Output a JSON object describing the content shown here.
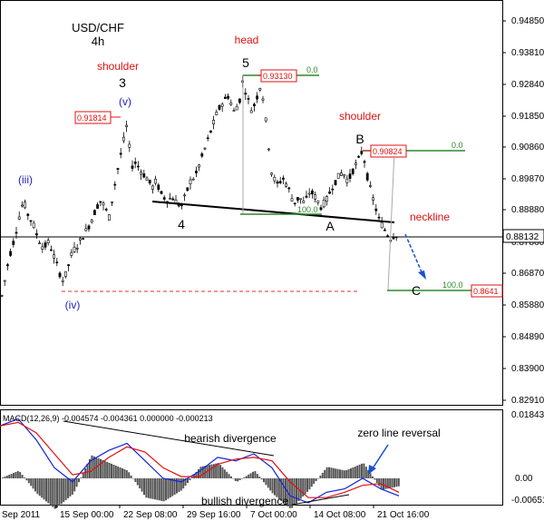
{
  "chart_data": {
    "type": "candlestick",
    "title": "USD/CHF",
    "subtitle": "4h",
    "colors": {
      "candles": "#000000",
      "neckline": "#000000",
      "current_line": "#000000",
      "target_line": "#e03030",
      "fib_line": "#2a8a2a",
      "annotation_red": "#e01010",
      "wave_blue": "#2020c0",
      "macd_line": "#1020e0",
      "signal_line": "#e01010",
      "histogram": "#555555"
    },
    "y_axis": {
      "ticks": [
        "0.94850",
        "0.93810",
        "0.92840",
        "0.91850",
        "0.90860",
        "0.89870",
        "0.88880",
        "0.87860",
        "0.86870",
        "0.85880",
        "0.84890",
        "0.83900",
        "0.82910"
      ],
      "range": [
        0.827,
        0.952
      ]
    },
    "x_axis": {
      "ticks": [
        "Sep 2011",
        "15 Sep 00:00",
        "22 Sep 08:00",
        "29 Sep 16:00",
        "7 Oct 00:00",
        "14 Oct 08:00",
        "21 Oct 16:00"
      ]
    },
    "price_path": [
      [
        0,
        0.859
      ],
      [
        4,
        0.865
      ],
      [
        10,
        0.874
      ],
      [
        16,
        0.88
      ],
      [
        22,
        0.888
      ],
      [
        26,
        0.892
      ],
      [
        30,
        0.888
      ],
      [
        36,
        0.885
      ],
      [
        42,
        0.88
      ],
      [
        48,
        0.877
      ],
      [
        54,
        0.879
      ],
      [
        60,
        0.874
      ],
      [
        66,
        0.869
      ],
      [
        70,
        0.8665
      ],
      [
        74,
        0.87
      ],
      [
        80,
        0.876
      ],
      [
        86,
        0.878
      ],
      [
        92,
        0.881
      ],
      [
        98,
        0.884
      ],
      [
        104,
        0.888
      ],
      [
        110,
        0.892
      ],
      [
        116,
        0.89
      ],
      [
        120,
        0.886
      ],
      [
        126,
        0.896
      ],
      [
        132,
        0.905
      ],
      [
        136,
        0.91
      ],
      [
        139,
        0.9165
      ],
      [
        142,
        0.91
      ],
      [
        146,
        0.903
      ],
      [
        150,
        0.904
      ],
      [
        156,
        0.901
      ],
      [
        162,
        0.899
      ],
      [
        168,
        0.896
      ],
      [
        172,
        0.898
      ],
      [
        178,
        0.894
      ],
      [
        184,
        0.892
      ],
      [
        190,
        0.893
      ],
      [
        196,
        0.891
      ],
      [
        200,
        0.89
      ],
      [
        204,
        0.893
      ],
      [
        210,
        0.898
      ],
      [
        216,
        0.9
      ],
      [
        222,
        0.905
      ],
      [
        228,
        0.91
      ],
      [
        234,
        0.915
      ],
      [
        240,
        0.92
      ],
      [
        246,
        0.923
      ],
      [
        252,
        0.925
      ],
      [
        258,
        0.92
      ],
      [
        264,
        0.923
      ],
      [
        268,
        0.93
      ],
      [
        272,
        0.925
      ],
      [
        278,
        0.92
      ],
      [
        284,
        0.925
      ],
      [
        288,
        0.929
      ],
      [
        292,
        0.92
      ],
      [
        296,
        0.91
      ],
      [
        300,
        0.9
      ],
      [
        306,
        0.897
      ],
      [
        312,
        0.899
      ],
      [
        318,
        0.896
      ],
      [
        324,
        0.891
      ],
      [
        330,
        0.893
      ],
      [
        336,
        0.891
      ],
      [
        342,
        0.895
      ],
      [
        348,
        0.893
      ],
      [
        354,
        0.89
      ],
      [
        360,
        0.892
      ],
      [
        366,
        0.896
      ],
      [
        372,
        0.899
      ],
      [
        378,
        0.901
      ],
      [
        384,
        0.898
      ],
      [
        390,
        0.902
      ],
      [
        396,
        0.905
      ],
      [
        400,
        0.908
      ],
      [
        404,
        0.901
      ],
      [
        408,
        0.896
      ],
      [
        412,
        0.892
      ],
      [
        418,
        0.886
      ],
      [
        424,
        0.883
      ],
      [
        430,
        0.88
      ],
      [
        436,
        0.8812
      ],
      [
        440,
        0.8815
      ]
    ],
    "horizontal_levels": [
      {
        "value": 0.8813,
        "label": "0.88132"
      },
      {
        "value": 0.8641,
        "label": "0.8641"
      }
    ],
    "price_labels": [
      {
        "label": "0.93130",
        "value": 0.9313
      },
      {
        "label": "0.91814",
        "value": 0.91814
      },
      {
        "label": "0.90824",
        "value": 0.90824
      },
      {
        "label": "0.8641",
        "value": 0.8641
      }
    ],
    "fib_labels": [
      "0.0",
      "0.0",
      "100.0",
      "100.0"
    ],
    "annotations": {
      "head": "head",
      "shoulder_left": "shoulder",
      "shoulder_right": "shoulder",
      "neckline": "neckline",
      "waves": [
        "(iii)",
        "(iv)",
        "(v)",
        "3",
        "4",
        "5",
        "A",
        "B",
        "C"
      ]
    },
    "macd": {
      "label": "MACD(12,26,9) -0.004574 -0.004361 0.000000 -0.000213",
      "y_ticks": [
        "0.01843",
        "0.00",
        "-0.00651"
      ],
      "annotations": [
        "bearish divergence",
        "bullish divergence",
        "zero line reversal"
      ],
      "macd_path": [
        [
          0,
          0.015
        ],
        [
          20,
          0.017
        ],
        [
          40,
          0.011
        ],
        [
          60,
          0.003
        ],
        [
          80,
          -0.001
        ],
        [
          100,
          0.005
        ],
        [
          120,
          0.008
        ],
        [
          140,
          0.01
        ],
        [
          160,
          0.005
        ],
        [
          180,
          0.0
        ],
        [
          200,
          -0.001
        ],
        [
          220,
          0.002
        ],
        [
          240,
          0.006
        ],
        [
          260,
          0.005
        ],
        [
          280,
          0.007
        ],
        [
          300,
          0.003
        ],
        [
          320,
          -0.005
        ],
        [
          340,
          -0.007
        ],
        [
          360,
          -0.004
        ],
        [
          380,
          -0.003
        ],
        [
          400,
          0.0
        ],
        [
          420,
          -0.003
        ],
        [
          440,
          -0.005
        ]
      ],
      "signal_path": [
        [
          0,
          0.015
        ],
        [
          20,
          0.016
        ],
        [
          40,
          0.013
        ],
        [
          60,
          0.007
        ],
        [
          80,
          0.001
        ],
        [
          100,
          0.002
        ],
        [
          120,
          0.006
        ],
        [
          140,
          0.009
        ],
        [
          160,
          0.0075
        ],
        [
          180,
          0.003
        ],
        [
          200,
          0.0005
        ],
        [
          220,
          0.0005
        ],
        [
          240,
          0.004
        ],
        [
          260,
          0.0055
        ],
        [
          280,
          0.006
        ],
        [
          300,
          0.005
        ],
        [
          320,
          -0.001
        ],
        [
          340,
          -0.0055
        ],
        [
          360,
          -0.0055
        ],
        [
          380,
          -0.004
        ],
        [
          400,
          -0.002
        ],
        [
          420,
          -0.0015
        ],
        [
          440,
          -0.004
        ]
      ]
    }
  }
}
